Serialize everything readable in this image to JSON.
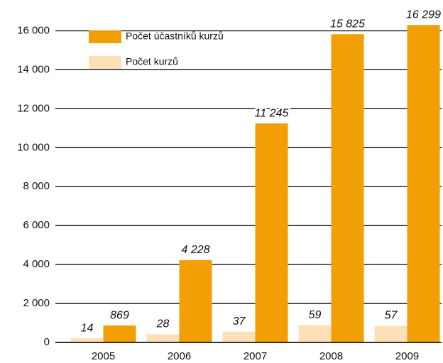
{
  "chart_data": {
    "type": "bar",
    "categories": [
      "2005",
      "2006",
      "2007",
      "2008",
      "2009"
    ],
    "series": [
      {
        "name": "Počet kurzů",
        "color": "#fde0b8",
        "axis": "y2",
        "values": [
          14,
          28,
          37,
          59,
          57
        ]
      },
      {
        "name": "Počet účastníků kurzů",
        "color": "#f29f05",
        "values": [
          869,
          4228,
          11245,
          15825,
          16299
        ],
        "value_labels": [
          "869",
          "4 228",
          "11 245",
          "15 825",
          "16 299"
        ]
      }
    ],
    "ylim": [
      0,
      17000
    ],
    "y2lim": [
      0,
      1133.3
    ],
    "yticks": [
      0,
      {
        "value": 2000,
        "label": "2 000"
      },
      {
        "value": 4000,
        "label": "4 000"
      },
      {
        "value": 6000,
        "label": "6 000"
      },
      {
        "value": 8000,
        "label": "8 000"
      },
      {
        "value": 10000,
        "label": "10 000"
      },
      {
        "value": 12000,
        "label": "12 000"
      },
      {
        "value": 14000,
        "label": "14 000"
      },
      {
        "value": 16000,
        "label": "16 000"
      }
    ],
    "grid": true
  }
}
